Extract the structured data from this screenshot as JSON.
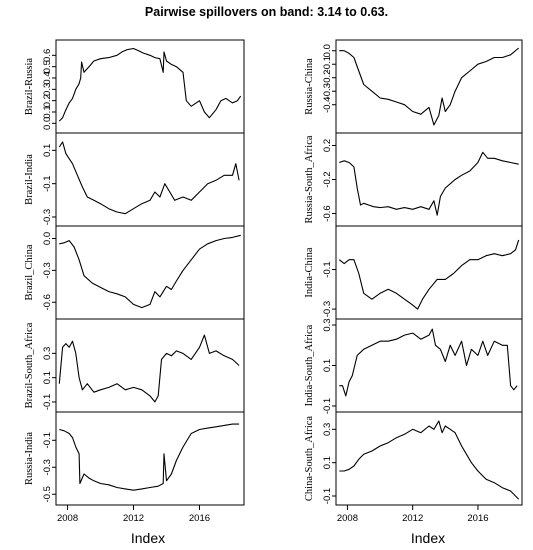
{
  "chart_data": {
    "type": "line",
    "title": "Pairwise spillovers on band: 3.14 to 0.63.",
    "x_axis_label": "Index",
    "x_ticks": [
      2008,
      2012,
      2016
    ],
    "xlim": [
      2007.3,
      2018.7
    ],
    "grid": false,
    "legend": "none",
    "columns": [
      {
        "xlabel": "Index",
        "panels": [
          {
            "name": "Brazil-Russia",
            "ylim": [
              -0.05,
              0.7
            ],
            "yticks": [
              "0.0",
              "0.1",
              "0.2",
              "0.3",
              "0.4",
              "0.5",
              "0.6"
            ],
            "x": [
              2007.5,
              2007.7,
              2007.9,
              2008.1,
              2008.3,
              2008.5,
              2008.7,
              2008.8,
              2008.85,
              2009.0,
              2009.3,
              2009.6,
              2010.0,
              2010.5,
              2011.0,
              2011.3,
              2011.6,
              2012.0,
              2012.3,
              2012.6,
              2013.0,
              2013.3,
              2013.6,
              2013.8,
              2013.85,
              2014.0,
              2014.3,
              2014.6,
              2015.0,
              2015.2,
              2015.5,
              2015.8,
              2016.0,
              2016.3,
              2016.6,
              2017.0,
              2017.3,
              2017.6,
              2018.0,
              2018.3,
              2018.5
            ],
            "y": [
              0.02,
              0.05,
              0.12,
              0.18,
              0.22,
              0.3,
              0.35,
              0.4,
              0.54,
              0.45,
              0.5,
              0.55,
              0.57,
              0.58,
              0.6,
              0.63,
              0.65,
              0.66,
              0.64,
              0.62,
              0.6,
              0.58,
              0.57,
              0.45,
              0.63,
              0.55,
              0.52,
              0.5,
              0.45,
              0.2,
              0.15,
              0.18,
              0.2,
              0.1,
              0.05,
              0.12,
              0.2,
              0.22,
              0.18,
              0.2,
              0.24
            ]
          },
          {
            "name": "Brazil-India",
            "ylim": [
              -0.33,
              0.18
            ],
            "yticks": [
              "-0.3",
              "-0.1",
              "0.1"
            ],
            "x": [
              2007.5,
              2007.7,
              2007.9,
              2008.1,
              2008.3,
              2008.6,
              2008.9,
              2009.2,
              2009.6,
              2010.0,
              2010.5,
              2011.0,
              2011.5,
              2012.0,
              2012.5,
              2013.0,
              2013.3,
              2013.6,
              2013.9,
              2014.2,
              2014.5,
              2015.0,
              2015.5,
              2016.0,
              2016.5,
              2017.0,
              2017.5,
              2018.0,
              2018.2,
              2018.4
            ],
            "y": [
              0.12,
              0.15,
              0.08,
              0.05,
              0.02,
              -0.05,
              -0.12,
              -0.18,
              -0.2,
              -0.22,
              -0.25,
              -0.27,
              -0.28,
              -0.25,
              -0.22,
              -0.2,
              -0.15,
              -0.18,
              -0.1,
              -0.15,
              -0.2,
              -0.18,
              -0.2,
              -0.15,
              -0.1,
              -0.08,
              -0.05,
              -0.05,
              0.02,
              -0.08
            ]
          },
          {
            "name": "Brazil_China",
            "ylim": [
              -0.72,
              0.08
            ],
            "yticks": [
              "-0.6",
              "-0.3",
              "0.0"
            ],
            "x": [
              2007.5,
              2007.8,
              2008.1,
              2008.4,
              2008.7,
              2009.0,
              2009.5,
              2010.0,
              2010.5,
              2011.0,
              2011.5,
              2012.0,
              2012.5,
              2013.0,
              2013.3,
              2013.6,
              2014.0,
              2014.3,
              2014.6,
              2015.0,
              2015.5,
              2016.0,
              2016.5,
              2017.0,
              2017.5,
              2018.0,
              2018.5
            ],
            "y": [
              -0.05,
              -0.04,
              -0.02,
              -0.08,
              -0.2,
              -0.35,
              -0.42,
              -0.46,
              -0.5,
              -0.52,
              -0.55,
              -0.62,
              -0.65,
              -0.62,
              -0.5,
              -0.55,
              -0.45,
              -0.48,
              -0.4,
              -0.3,
              -0.2,
              -0.1,
              -0.05,
              -0.02,
              0.0,
              0.01,
              0.03
            ]
          },
          {
            "name": "Brazil-South_Africa",
            "ylim": [
              -0.15,
              0.55
            ],
            "yticks": [
              "-0.1",
              "0.1",
              "0.3"
            ],
            "x": [
              2007.5,
              2007.7,
              2007.9,
              2008.1,
              2008.3,
              2008.5,
              2008.7,
              2008.9,
              2009.2,
              2009.6,
              2010.0,
              2010.5,
              2011.0,
              2011.5,
              2012.0,
              2012.5,
              2013.0,
              2013.3,
              2013.5,
              2013.7,
              2014.0,
              2014.3,
              2014.6,
              2015.0,
              2015.5,
              2016.0,
              2016.3,
              2016.6,
              2017.0,
              2017.5,
              2018.0,
              2018.4
            ],
            "y": [
              0.05,
              0.35,
              0.38,
              0.35,
              0.4,
              0.3,
              0.1,
              0.0,
              0.05,
              -0.02,
              0.0,
              0.02,
              0.05,
              0.0,
              0.02,
              0.0,
              -0.05,
              -0.1,
              -0.05,
              0.25,
              0.3,
              0.28,
              0.32,
              0.3,
              0.25,
              0.35,
              0.45,
              0.3,
              0.32,
              0.28,
              0.25,
              0.2
            ]
          },
          {
            "name": "Russia-India",
            "ylim": [
              -0.55,
              0.08
            ],
            "yticks": [
              "-0.5",
              "-0.3",
              "-0.1"
            ],
            "x": [
              2007.5,
              2007.8,
              2008.1,
              2008.3,
              2008.5,
              2008.7,
              2008.75,
              2009.0,
              2009.3,
              2009.6,
              2010.0,
              2010.5,
              2011.0,
              2011.5,
              2012.0,
              2012.5,
              2013.0,
              2013.5,
              2013.8,
              2013.85,
              2014.0,
              2014.3,
              2014.6,
              2015.0,
              2015.5,
              2016.0,
              2016.5,
              2017.0,
              2017.5,
              2018.0,
              2018.4
            ],
            "y": [
              -0.02,
              -0.03,
              -0.05,
              -0.08,
              -0.15,
              -0.2,
              -0.42,
              -0.35,
              -0.38,
              -0.4,
              -0.42,
              -0.43,
              -0.45,
              -0.46,
              -0.47,
              -0.46,
              -0.45,
              -0.44,
              -0.42,
              -0.2,
              -0.4,
              -0.35,
              -0.25,
              -0.15,
              -0.05,
              -0.02,
              -0.01,
              0.0,
              0.01,
              0.02,
              0.02
            ]
          }
        ]
      },
      {
        "xlabel": "Index",
        "panels": [
          {
            "name": "Russia-China",
            "ylim": [
              -0.58,
              0.05
            ],
            "yticks": [
              "-0.4",
              "-0.3",
              "-0.2",
              "-0.1",
              "0.0"
            ],
            "x": [
              2007.5,
              2007.8,
              2008.1,
              2008.4,
              2008.7,
              2009.0,
              2009.5,
              2010.0,
              2010.5,
              2011.0,
              2011.5,
              2012.0,
              2012.5,
              2013.0,
              2013.3,
              2013.6,
              2013.8,
              2014.0,
              2014.3,
              2014.6,
              2015.0,
              2015.5,
              2016.0,
              2016.5,
              2017.0,
              2017.5,
              2018.0,
              2018.5
            ],
            "y": [
              0.0,
              0.0,
              -0.02,
              -0.05,
              -0.15,
              -0.25,
              -0.3,
              -0.35,
              -0.36,
              -0.38,
              -0.4,
              -0.45,
              -0.47,
              -0.42,
              -0.55,
              -0.48,
              -0.35,
              -0.45,
              -0.4,
              -0.3,
              -0.2,
              -0.15,
              -0.1,
              -0.08,
              -0.05,
              -0.05,
              -0.03,
              0.02
            ]
          },
          {
            "name": "Russia-South_Africa",
            "ylim": [
              -0.7,
              0.3
            ],
            "yticks": [
              "-0.6",
              "-0.2",
              "0.2"
            ],
            "x": [
              2007.5,
              2007.8,
              2008.1,
              2008.4,
              2008.6,
              2008.8,
              2009.0,
              2009.3,
              2009.6,
              2010.0,
              2010.5,
              2011.0,
              2011.5,
              2012.0,
              2012.5,
              2013.0,
              2013.3,
              2013.5,
              2013.7,
              2014.0,
              2014.3,
              2014.6,
              2015.0,
              2015.5,
              2016.0,
              2016.3,
              2016.6,
              2017.0,
              2017.5,
              2018.0,
              2018.5
            ],
            "y": [
              0.0,
              0.02,
              0.0,
              -0.05,
              -0.3,
              -0.5,
              -0.48,
              -0.5,
              -0.52,
              -0.53,
              -0.52,
              -0.55,
              -0.53,
              -0.55,
              -0.52,
              -0.55,
              -0.45,
              -0.62,
              -0.4,
              -0.3,
              -0.25,
              -0.2,
              -0.15,
              -0.1,
              0.0,
              0.12,
              0.05,
              0.05,
              0.02,
              0.0,
              -0.02
            ]
          },
          {
            "name": "India-China",
            "ylim": [
              -0.33,
              0.1
            ],
            "yticks": [
              "-0.3",
              "-0.1"
            ],
            "x": [
              2007.5,
              2007.8,
              2008.1,
              2008.4,
              2008.7,
              2009.0,
              2009.5,
              2010.0,
              2010.5,
              2011.0,
              2011.5,
              2012.0,
              2012.3,
              2012.6,
              2013.0,
              2013.5,
              2014.0,
              2014.5,
              2015.0,
              2015.5,
              2016.0,
              2016.5,
              2017.0,
              2017.5,
              2018.0,
              2018.3,
              2018.5
            ],
            "y": [
              -0.05,
              -0.07,
              -0.05,
              -0.05,
              -0.12,
              -0.22,
              -0.25,
              -0.22,
              -0.2,
              -0.22,
              -0.25,
              -0.28,
              -0.3,
              -0.25,
              -0.2,
              -0.15,
              -0.15,
              -0.12,
              -0.08,
              -0.05,
              -0.05,
              -0.03,
              -0.02,
              -0.03,
              -0.02,
              0.0,
              0.05
            ]
          },
          {
            "name": "India-South_Africa",
            "ylim": [
              -0.11,
              0.31
            ],
            "yticks": [
              "-0.1",
              "0.1",
              "0.3"
            ],
            "x": [
              2007.5,
              2007.7,
              2007.9,
              2008.1,
              2008.3,
              2008.6,
              2009.0,
              2009.5,
              2010.0,
              2010.5,
              2011.0,
              2011.5,
              2012.0,
              2012.5,
              2013.0,
              2013.2,
              2013.4,
              2013.7,
              2014.0,
              2014.3,
              2014.6,
              2015.0,
              2015.3,
              2015.6,
              2016.0,
              2016.3,
              2016.6,
              2017.0,
              2017.5,
              2017.8,
              2018.0,
              2018.2,
              2018.4
            ],
            "y": [
              0.0,
              0.0,
              -0.05,
              0.02,
              0.05,
              0.15,
              0.18,
              0.2,
              0.22,
              0.22,
              0.23,
              0.25,
              0.26,
              0.23,
              0.25,
              0.28,
              0.2,
              0.18,
              0.12,
              0.2,
              0.15,
              0.22,
              0.1,
              0.18,
              0.15,
              0.22,
              0.15,
              0.22,
              0.2,
              0.2,
              0.0,
              -0.02,
              0.0
            ]
          },
          {
            "name": "China-South_Africa",
            "ylim": [
              -0.13,
              0.38
            ],
            "yticks": [
              "-0.1",
              "0.1",
              "0.3"
            ],
            "x": [
              2007.5,
              2007.8,
              2008.1,
              2008.4,
              2008.7,
              2009.0,
              2009.5,
              2010.0,
              2010.5,
              2011.0,
              2011.5,
              2012.0,
              2012.5,
              2013.0,
              2013.3,
              2013.6,
              2013.8,
              2014.0,
              2014.3,
              2014.6,
              2015.0,
              2015.3,
              2015.6,
              2016.0,
              2016.5,
              2017.0,
              2017.5,
              2018.0,
              2018.3,
              2018.5
            ],
            "y": [
              0.05,
              0.05,
              0.06,
              0.08,
              0.12,
              0.15,
              0.17,
              0.2,
              0.22,
              0.25,
              0.27,
              0.3,
              0.28,
              0.32,
              0.3,
              0.35,
              0.28,
              0.32,
              0.3,
              0.28,
              0.2,
              0.15,
              0.1,
              0.05,
              0.0,
              -0.02,
              -0.05,
              -0.07,
              -0.1,
              -0.12
            ]
          }
        ]
      }
    ]
  }
}
